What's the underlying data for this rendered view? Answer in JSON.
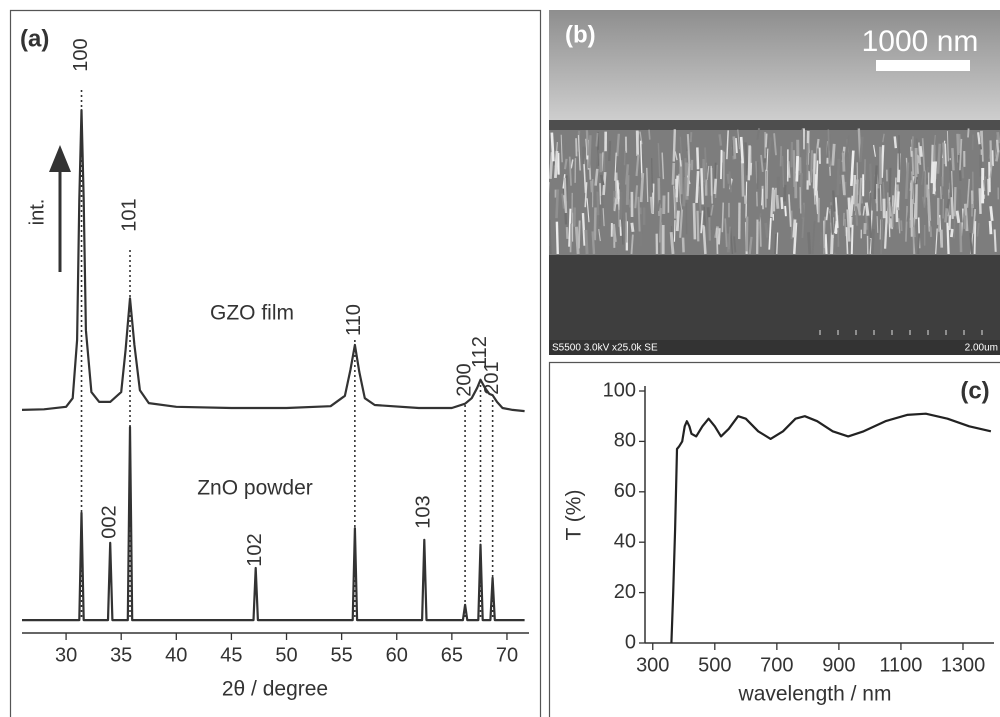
{
  "chart_data": [
    {
      "type": "line",
      "label": "(a)",
      "xlabel": "2θ / degree",
      "arrow_label": "int.",
      "xlim": [
        26,
        72
      ],
      "xticks": [
        30,
        35,
        40,
        45,
        50,
        55,
        60,
        65,
        70
      ],
      "ylim": [
        0,
        100
      ],
      "series": [
        {
          "name": "GZO film",
          "color": "#333333",
          "x": [
            26,
            28,
            30,
            30.6,
            31.0,
            31.2,
            31.4,
            31.6,
            31.8,
            32.3,
            33,
            34,
            35,
            35.4,
            35.8,
            36.2,
            36.7,
            37.5,
            40,
            45,
            50,
            54,
            55.3,
            55.8,
            56.2,
            56.6,
            57.1,
            58,
            62,
            65,
            66.2,
            66.8,
            67.3,
            67.6,
            68.0,
            68.4,
            68.7,
            69.1,
            69.6,
            70.5,
            71.6
          ],
          "values": [
            36.4,
            36.5,
            36.9,
            38.3,
            47.8,
            70.6,
            85.3,
            70.6,
            49.4,
            39.3,
            37.7,
            37.7,
            39.3,
            46.2,
            54.6,
            47.0,
            39.6,
            37.5,
            36.9,
            36.7,
            36.7,
            37.0,
            38.7,
            42.9,
            47.0,
            42.6,
            38.3,
            37.2,
            36.7,
            36.7,
            37.4,
            38.3,
            40.0,
            41.3,
            40.0,
            39.0,
            38.8,
            37.7,
            36.7,
            36.4,
            36.2
          ]
        },
        {
          "name": "ZnO powder",
          "color": "#333333",
          "x": [
            26,
            31.2,
            31.4,
            31.6,
            33.8,
            34.0,
            34.2,
            35.6,
            35.8,
            36.0,
            47.0,
            47.2,
            47.4,
            56.0,
            56.2,
            56.4,
            62.3,
            62.5,
            62.7,
            66.0,
            66.2,
            66.4,
            67.4,
            67.6,
            67.8,
            68.5,
            68.7,
            68.9,
            71.6
          ],
          "values": [
            2.1,
            2.1,
            19.6,
            2.1,
            2.1,
            14.7,
            2.1,
            2.1,
            33.6,
            2.1,
            2.1,
            10.6,
            2.1,
            2.1,
            17.1,
            2.1,
            2.1,
            15.2,
            2.1,
            2.1,
            4.6,
            2.1,
            2.1,
            14.4,
            2.1,
            2.1,
            9.0,
            2.1,
            2.1
          ]
        }
      ],
      "annotations": [
        {
          "text": "100",
          "x": 31.4
        },
        {
          "text": "101",
          "x": 35.8
        },
        {
          "text": "110",
          "x": 56.2
        },
        {
          "text": "200",
          "x": 66.2
        },
        {
          "text": "112",
          "x": 67.6
        },
        {
          "text": "201",
          "x": 68.7
        },
        {
          "text": "002",
          "x": 34.0
        },
        {
          "text": "102",
          "x": 47.2
        },
        {
          "text": "103",
          "x": 62.5
        }
      ]
    },
    {
      "type": "line",
      "label": "(c)",
      "xlabel": "wavelength / nm",
      "ylabel": "T (%)",
      "xlim": [
        275,
        1400
      ],
      "xticks": [
        300,
        500,
        700,
        900,
        1100,
        1300
      ],
      "ylim": [
        0,
        100
      ],
      "yticks": [
        0,
        20,
        40,
        60,
        80,
        100
      ],
      "series": [
        {
          "color": "#222222",
          "x": [
            360,
            366,
            372,
            378,
            385,
            395,
            403,
            410,
            418,
            425,
            440,
            460,
            480,
            500,
            520,
            545,
            575,
            600,
            640,
            680,
            720,
            760,
            790,
            830,
            880,
            930,
            980,
            1050,
            1120,
            1180,
            1250,
            1320,
            1390
          ],
          "values": [
            0,
            20,
            45,
            77,
            78,
            80,
            86,
            88,
            86,
            83,
            82,
            86,
            89,
            86,
            82,
            85,
            90,
            89,
            84,
            81,
            84,
            89,
            90,
            88,
            84,
            82,
            84,
            88,
            90.5,
            91,
            89,
            86,
            84
          ]
        }
      ]
    }
  ],
  "image_panel": {
    "label": "(b)",
    "scale_bar": "1000 nm",
    "info": "S5500 3.0kV x25.0k SE",
    "scale": "2.00um"
  }
}
